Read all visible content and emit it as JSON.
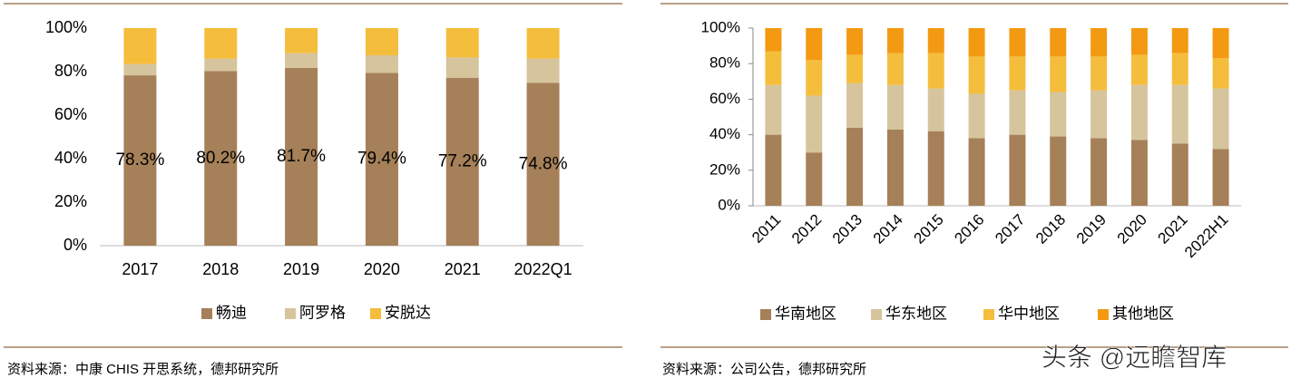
{
  "chart_data": [
    {
      "type": "bar",
      "stacked": true,
      "categories": [
        "2017",
        "2018",
        "2019",
        "2020",
        "2021",
        "2022Q1"
      ],
      "series": [
        {
          "name": "畅迪",
          "color": "#a68058",
          "values": [
            78.3,
            80.2,
            81.7,
            79.4,
            77.2,
            74.8
          ],
          "value_labels": [
            "78.3%",
            "80.2%",
            "81.7%",
            "79.4%",
            "77.2%",
            "74.8%"
          ]
        },
        {
          "name": "阿罗格",
          "color": "#d6c49d",
          "values": [
            5.2,
            5.8,
            6.8,
            8.1,
            9.3,
            11.2
          ]
        },
        {
          "name": "安脱达",
          "color": "#f5bd3c",
          "values": [
            16.5,
            14.0,
            11.5,
            12.5,
            13.5,
            14.0
          ]
        }
      ],
      "ylim": [
        0,
        100
      ],
      "yticks": [
        {
          "value": 0,
          "label": "0%"
        },
        {
          "value": 20,
          "label": "20%"
        },
        {
          "value": 40,
          "label": "40%"
        },
        {
          "value": 60,
          "label": "60%"
        },
        {
          "value": 80,
          "label": "80%"
        },
        {
          "value": 100,
          "label": "100%"
        }
      ],
      "source": "资料来源：中康 CHIS 开思系统，德邦研究所"
    },
    {
      "type": "bar",
      "stacked": true,
      "categories": [
        "2011",
        "2012",
        "2013",
        "2014",
        "2015",
        "2016",
        "2017",
        "2018",
        "2019",
        "2020",
        "2021",
        "2022H1"
      ],
      "series": [
        {
          "name": "华南地区",
          "color": "#a68058",
          "values": [
            40,
            30,
            44,
            43,
            42,
            38,
            40,
            39,
            38,
            37,
            35,
            32
          ]
        },
        {
          "name": "华东地区",
          "color": "#d6c49d",
          "values": [
            28,
            32,
            25,
            25,
            24,
            25,
            25,
            25,
            27,
            31,
            33,
            34
          ]
        },
        {
          "name": "华中地区",
          "color": "#f5bd3c",
          "values": [
            19,
            20,
            16,
            18,
            20,
            21,
            19,
            20,
            19,
            17,
            18,
            17
          ]
        },
        {
          "name": "其他地区",
          "color": "#f39a12",
          "values": [
            13,
            18,
            15,
            14,
            14,
            16,
            16,
            16,
            16,
            15,
            14,
            17
          ]
        }
      ],
      "ylim": [
        0,
        100
      ],
      "yticks": [
        {
          "value": 0,
          "label": "0%"
        },
        {
          "value": 20,
          "label": "20%"
        },
        {
          "value": 40,
          "label": "40%"
        },
        {
          "value": 60,
          "label": "60%"
        },
        {
          "value": 80,
          "label": "80%"
        },
        {
          "value": 100,
          "label": "100%"
        }
      ],
      "source": "资料来源：公司公告，德邦研究所"
    }
  ],
  "watermark": "头条 @远瞻智库"
}
